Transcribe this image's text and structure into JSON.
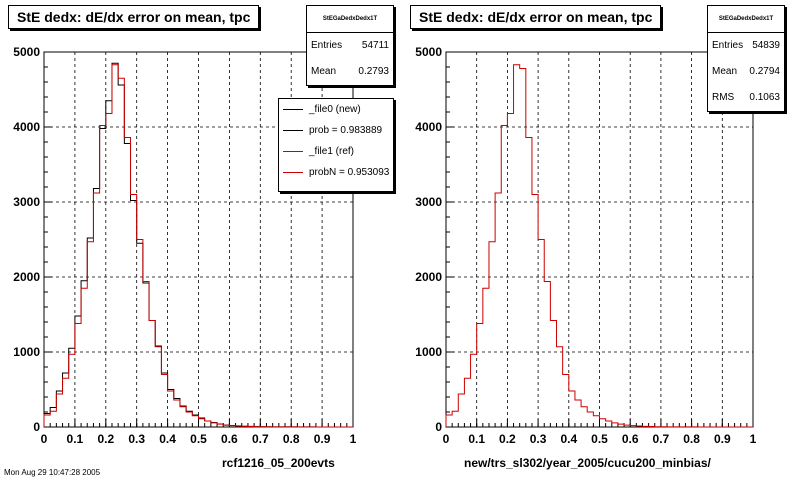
{
  "chart_data": [
    {
      "type": "bar",
      "title": "StE dedx: dE/dx error on mean, tpc",
      "xlabel": "rcf1216_05_200evts",
      "ylabel": "",
      "xlim": [
        0,
        1
      ],
      "ylim": [
        0,
        5000
      ],
      "x_ticks": [
        "0",
        "0.1",
        "0.2",
        "0.3",
        "0.4",
        "0.5",
        "0.6",
        "0.7",
        "0.8",
        "0.9",
        "1"
      ],
      "y_ticks": [
        "0",
        "1000",
        "2000",
        "3000",
        "4000",
        "5000"
      ],
      "grid": true,
      "bin_width": 0.02,
      "series": [
        {
          "name": "_file0 (new)",
          "color": "#000000",
          "values": [
            180,
            260,
            480,
            720,
            1050,
            1480,
            1950,
            2520,
            3180,
            3980,
            4350,
            4850,
            4560,
            3780,
            3020,
            2450,
            1920,
            1420,
            1080,
            720,
            500,
            380,
            280,
            210,
            160,
            120,
            80,
            60,
            40,
            25,
            20,
            15,
            10,
            8,
            5,
            4,
            3,
            2,
            2,
            1,
            1,
            1,
            1,
            1,
            0,
            0,
            0,
            0,
            0,
            0
          ]
        },
        {
          "name": "_file1 (ref)",
          "color": "#cc0000",
          "values": [
            160,
            210,
            440,
            650,
            970,
            1380,
            1850,
            2470,
            3120,
            4020,
            4180,
            4830,
            4650,
            3860,
            3100,
            2500,
            1940,
            1420,
            1070,
            700,
            480,
            360,
            270,
            200,
            150,
            110,
            80,
            55,
            38,
            25,
            18,
            14,
            9,
            6,
            4,
            3,
            2,
            2,
            1,
            1,
            1,
            0,
            0,
            0,
            0,
            0,
            0,
            0,
            0,
            0
          ]
        }
      ]
    },
    {
      "type": "bar",
      "title": "StE dedx: dE/dx error on mean, tpc",
      "xlabel": "new/trs_sl302/year_2005/cucu200_minbias/",
      "ylabel": "",
      "xlim": [
        0,
        1
      ],
      "ylim": [
        0,
        5000
      ],
      "x_ticks": [
        "0",
        "0.1",
        "0.2",
        "0.3",
        "0.4",
        "0.5",
        "0.6",
        "0.7",
        "0.8",
        "0.9",
        "1"
      ],
      "y_ticks": [
        "0",
        "1000",
        "2000",
        "3000",
        "4000",
        "5000"
      ],
      "grid": true,
      "bin_width": 0.02,
      "series": [
        {
          "name": "",
          "color": "#cc0000",
          "values": [
            160,
            210,
            440,
            650,
            970,
            1380,
            1850,
            2470,
            3120,
            4020,
            4180,
            4830,
            4780,
            3860,
            3100,
            2500,
            1940,
            1420,
            1070,
            700,
            480,
            360,
            270,
            200,
            150,
            110,
            80,
            55,
            38,
            25,
            18,
            14,
            9,
            6,
            4,
            3,
            2,
            2,
            1,
            1,
            1,
            0,
            0,
            0,
            0,
            0,
            0,
            0,
            0,
            0
          ]
        }
      ]
    }
  ],
  "panels": [
    {
      "stat_title": "StEGaDedxDedx1T",
      "stats": [
        {
          "label": "Entries",
          "value": "54711"
        },
        {
          "label": "Mean",
          "value": "0.2793"
        }
      ],
      "legend": [
        {
          "label": "_file0 (new)",
          "color": "#000000"
        },
        {
          "label": "prob = 0.983889",
          "color": "#000000"
        },
        {
          "label": "_file1 (ref)",
          "color": "#cc0000"
        },
        {
          "label": "probN = 0.953093",
          "color": "#cc0000"
        }
      ]
    },
    {
      "stat_title": "StEGaDedxDedx1T",
      "stats": [
        {
          "label": "Entries",
          "value": "54839"
        },
        {
          "label": "Mean",
          "value": "0.2794"
        },
        {
          "label": "RMS",
          "value": "0.1063"
        }
      ]
    }
  ],
  "footer": {
    "stamp": "Mon Aug 29 10:47:28 2005"
  }
}
